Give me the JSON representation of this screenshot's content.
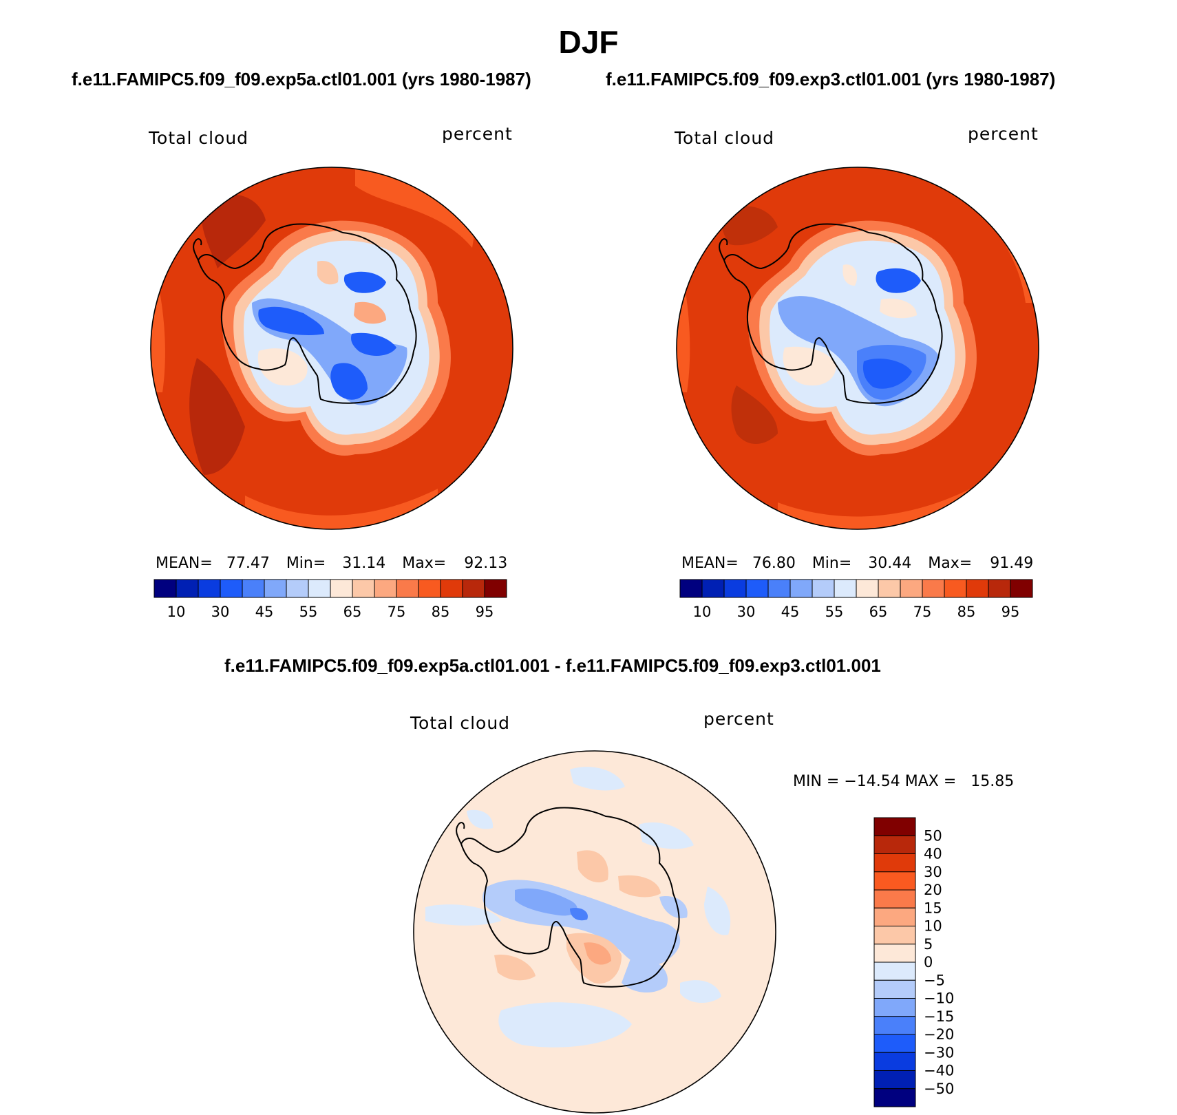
{
  "figure": {
    "title": "DJF"
  },
  "panels": [
    {
      "case_title": "f.e11.FAMIPC5.f09_f09.exp5a.ctl01.001 (yrs 1980-1987)",
      "variable": "Total cloud",
      "units": "percent",
      "stats": {
        "mean_label": "MEAN=",
        "mean": "77.47",
        "min_label": "Min=",
        "min": "31.14",
        "max_label": "Max=",
        "max": "92.13"
      },
      "base_fill": "#e03a0a",
      "ocean_patch_color": "#b8280b"
    },
    {
      "case_title": "f.e11.FAMIPC5.f09_f09.exp3.ctl01.001 (yrs 1980-1987)",
      "variable": "Total cloud",
      "units": "percent",
      "stats": {
        "mean_label": "MEAN=",
        "mean": "76.80",
        "min_label": "Min=",
        "min": "30.44",
        "max_label": "Max=",
        "max": "91.49"
      },
      "base_fill": "#e03a0a",
      "ocean_patch_color": "#c0300a"
    }
  ],
  "colorbar_abs": {
    "colors": [
      "#00007f",
      "#0020b4",
      "#0a3ce0",
      "#1e5cfa",
      "#4a80fa",
      "#80a8fa",
      "#b4ccfa",
      "#dceafc",
      "#fde8d8",
      "#fcc8a8",
      "#fca880",
      "#fa7a4a",
      "#f85a20",
      "#e03a0a",
      "#b8280b",
      "#800000"
    ],
    "tick_labels": [
      "10",
      "30",
      "45",
      "55",
      "65",
      "75",
      "85",
      "95"
    ]
  },
  "difference": {
    "title": "f.e11.FAMIPC5.f09_f09.exp5a.ctl01.001 - f.e11.FAMIPC5.f09_f09.exp3.ctl01.001",
    "variable": "Total cloud",
    "units": "percent",
    "minmax_text": "MIN = −14.54 MAX =   15.85",
    "base_fill": "#fde8d8",
    "colorbar": {
      "colors": [
        "#800000",
        "#b8280b",
        "#e03a0a",
        "#fa5a20",
        "#fa7a4a",
        "#fca880",
        "#fcc8a8",
        "#fde8d8",
        "#dceafc",
        "#b4ccfa",
        "#80a8fa",
        "#4a80fa",
        "#1e5cfa",
        "#0a3ce0",
        "#0020b4",
        "#00007f"
      ],
      "tick_labels": [
        "50",
        "40",
        "30",
        "20",
        "15",
        "10",
        "5",
        "0",
        "−5",
        "−10",
        "−15",
        "−20",
        "−30",
        "−40",
        "−50"
      ]
    }
  }
}
